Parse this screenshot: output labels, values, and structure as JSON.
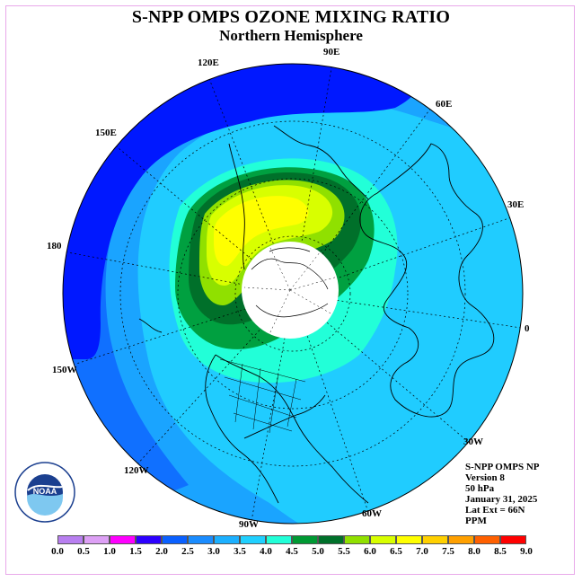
{
  "title": "S-NPP OMPS OZONE MIXING RATIO",
  "subtitle": "Northern Hemisphere",
  "longitude_labels": {
    "lon_90e": "90E",
    "lon_60e": "60E",
    "lon_30e": "30E",
    "lon_0": "0",
    "lon_30w": "30W",
    "lon_60w": "60W",
    "lon_90w": "90W",
    "lon_120w": "120W",
    "lon_150w": "150W",
    "lon_180": "180",
    "lon_150e": "150E",
    "lon_120e": "120E"
  },
  "info": {
    "instrument": "S-NPP OMPS NP",
    "version": "Version 8",
    "level": "50 hPa",
    "date": "January 31, 2025",
    "lat_ext": "Lat Ext = 66N",
    "units": "PPM"
  },
  "colorbar": {
    "ticks": [
      "0.0",
      "0.5",
      "1.0",
      "1.5",
      "2.0",
      "2.5",
      "3.0",
      "3.5",
      "4.0",
      "4.5",
      "5.0",
      "5.5",
      "6.0",
      "6.5",
      "7.0",
      "7.5",
      "8.0",
      "8.5",
      "9.0"
    ],
    "colors": [
      "#b87ff0",
      "#dda0f5",
      "#ff00ff",
      "#2c00ff",
      "#0a60ff",
      "#1a8cff",
      "#1cb0ff",
      "#20d0ff",
      "#22ffd8",
      "#009933",
      "#00702a",
      "#90e000",
      "#d8ff00",
      "#ffff00",
      "#ffd000",
      "#ffa000",
      "#ff6000",
      "#ff0000",
      "#a05a3c"
    ]
  },
  "logo": {
    "name": "NOAA",
    "ring_text": "NATIONAL OCEANIC AND ATMOSPHERIC ADMINISTRATION · U.S. DEPARTMENT OF COMMERCE"
  },
  "colors": {
    "band_2_0": "#0018ff",
    "band_2_5": "#1070ff",
    "band_3_0": "#1aa4ff",
    "band_3_5": "#20ccff",
    "band_4_0": "#22ffd8",
    "band_4_5": "#00a040",
    "band_5_0": "#00702a",
    "band_5_5": "#90e000",
    "band_6_0": "#d8ff00",
    "band_6_5": "#ffff00"
  }
}
